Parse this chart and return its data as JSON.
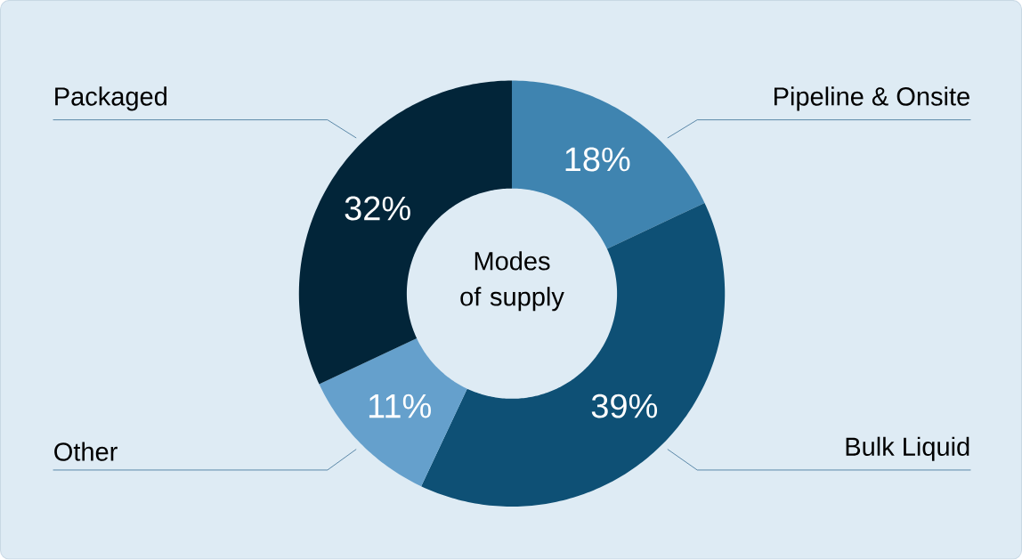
{
  "chart_data": {
    "type": "donut",
    "title": "Modes of supply",
    "categories": [
      "Pipeline & Onsite",
      "Bulk Liquid",
      "Other",
      "Packaged"
    ],
    "values": [
      18,
      39,
      11,
      32
    ],
    "colors": [
      "#3f84b0",
      "#0e5075",
      "#65a0cc",
      "#022539"
    ],
    "value_labels": [
      "18%",
      "39%",
      "11%",
      "32%"
    ]
  }
}
